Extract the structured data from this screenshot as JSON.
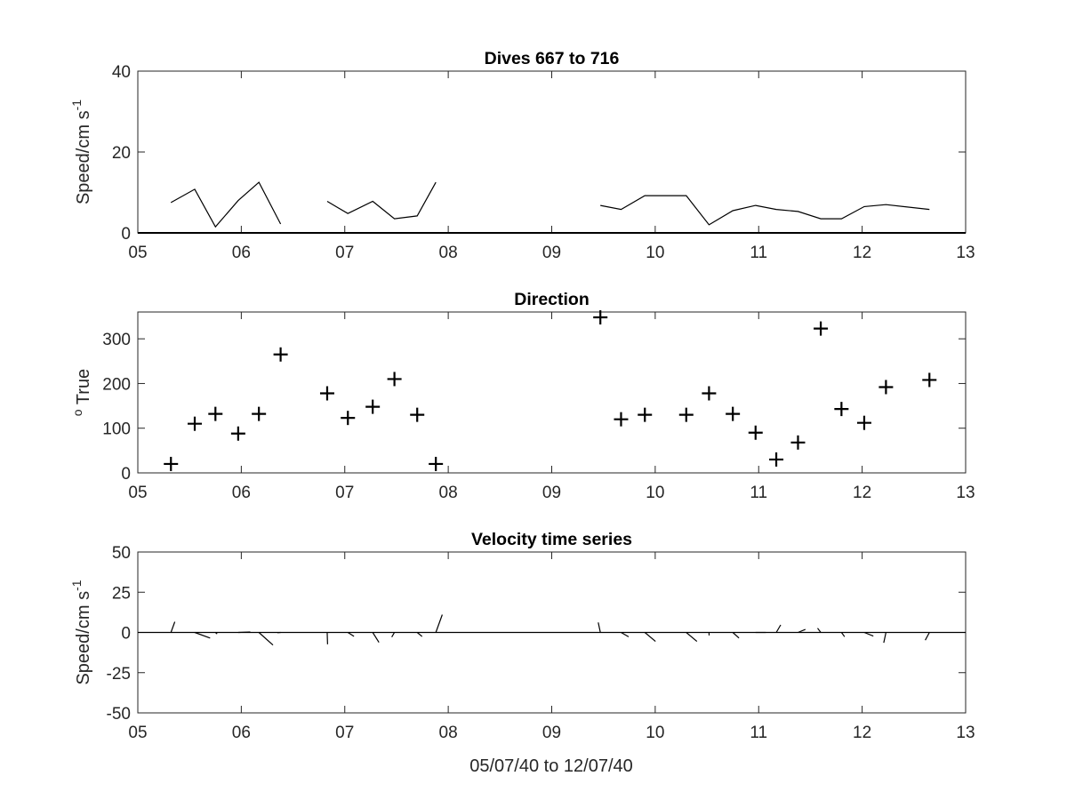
{
  "figure": {
    "xlabel": "05/07/40 to 12/07/40"
  },
  "chart_data": [
    {
      "type": "line",
      "title": "Dives 667 to 716",
      "ylabel": {
        "main": "Speed/cm s",
        "sup": "-1"
      },
      "xlim": [
        5,
        13
      ],
      "ylim": [
        0,
        40
      ],
      "x_ticks": [
        5,
        6,
        7,
        8,
        9,
        10,
        11,
        12,
        13
      ],
      "x_tick_labels": [
        "05",
        "06",
        "07",
        "08",
        "09",
        "10",
        "11",
        "12",
        "13"
      ],
      "y_ticks": [
        0,
        20,
        40
      ],
      "y_tick_labels": [
        "0",
        "20",
        "40"
      ],
      "grid": false,
      "series": [
        {
          "segments": [
            [
              [
                5.32,
                7.5
              ],
              [
                5.55,
                10.8
              ],
              [
                5.75,
                1.5
              ],
              [
                5.97,
                8.0
              ],
              [
                6.17,
                12.5
              ],
              [
                6.38,
                2.2
              ]
            ],
            [
              [
                6.83,
                7.8
              ],
              [
                7.03,
                4.8
              ],
              [
                7.27,
                7.8
              ],
              [
                7.48,
                3.5
              ],
              [
                7.7,
                4.2
              ],
              [
                7.88,
                12.5
              ]
            ],
            [
              [
                9.47,
                6.8
              ],
              [
                9.67,
                5.8
              ],
              [
                9.9,
                9.2
              ],
              [
                10.3,
                9.2
              ],
              [
                10.52,
                2.0
              ],
              [
                10.75,
                5.5
              ],
              [
                10.97,
                6.8
              ],
              [
                11.17,
                5.8
              ],
              [
                11.38,
                5.3
              ],
              [
                11.6,
                3.5
              ],
              [
                11.8,
                3.5
              ],
              [
                12.02,
                6.5
              ],
              [
                12.23,
                7.0
              ],
              [
                12.65,
                5.8
              ]
            ]
          ]
        }
      ]
    },
    {
      "type": "scatter",
      "title": "Direction",
      "ylabel": {
        "main": "True",
        "sup": "o"
      },
      "marker": "+",
      "xlim": [
        5,
        13
      ],
      "ylim": [
        0,
        360
      ],
      "x_ticks": [
        5,
        6,
        7,
        8,
        9,
        10,
        11,
        12,
        13
      ],
      "x_tick_labels": [
        "05",
        "06",
        "07",
        "08",
        "09",
        "10",
        "11",
        "12",
        "13"
      ],
      "y_ticks": [
        0,
        100,
        200,
        300
      ],
      "y_tick_labels": [
        "0",
        "100",
        "200",
        "300"
      ],
      "grid": false,
      "x": [
        5.32,
        5.55,
        5.75,
        5.97,
        6.17,
        6.38,
        6.83,
        7.03,
        7.27,
        7.48,
        7.7,
        7.88,
        9.47,
        9.67,
        9.9,
        10.3,
        10.52,
        10.75,
        10.97,
        11.17,
        11.38,
        11.6,
        11.8,
        12.02,
        12.23,
        12.65
      ],
      "y": [
        20,
        110,
        132,
        88,
        132,
        265,
        178,
        123,
        148,
        210,
        130,
        20,
        348,
        120,
        130,
        130,
        178,
        132,
        90,
        30,
        68,
        323,
        143,
        112,
        192,
        208
      ]
    },
    {
      "type": "line",
      "title": "Velocity time series",
      "subtype": "stick",
      "ylabel": {
        "main": "Speed/cm s",
        "sup": "-1"
      },
      "xlim": [
        5,
        13
      ],
      "ylim": [
        -50,
        50
      ],
      "x_ticks": [
        5,
        6,
        7,
        8,
        9,
        10,
        11,
        12,
        13
      ],
      "x_tick_labels": [
        "05",
        "06",
        "07",
        "08",
        "09",
        "10",
        "11",
        "12",
        "13"
      ],
      "y_ticks": [
        -50,
        -25,
        0,
        25,
        50
      ],
      "y_tick_labels": [
        "-50",
        "-25",
        "0",
        "25",
        "50"
      ],
      "grid": false,
      "x": [
        5.32,
        5.55,
        5.75,
        5.97,
        6.17,
        6.38,
        6.83,
        7.03,
        7.27,
        7.48,
        7.7,
        7.88,
        9.47,
        9.67,
        9.9,
        10.3,
        10.52,
        10.75,
        10.97,
        11.17,
        11.38,
        11.6,
        11.8,
        12.02,
        12.23,
        12.65
      ],
      "speed": [
        7.5,
        10.8,
        1.5,
        8.0,
        12.5,
        2.2,
        7.8,
        4.8,
        7.8,
        3.5,
        4.2,
        12.5,
        6.8,
        5.8,
        9.2,
        9.2,
        2.0,
        5.5,
        6.8,
        5.8,
        5.3,
        3.5,
        3.5,
        6.5,
        7.0,
        5.8
      ],
      "direction": [
        20,
        110,
        132,
        88,
        132,
        265,
        178,
        123,
        148,
        210,
        130,
        20,
        348,
        120,
        130,
        130,
        178,
        132,
        90,
        30,
        68,
        323,
        143,
        112,
        192,
        208
      ]
    }
  ]
}
